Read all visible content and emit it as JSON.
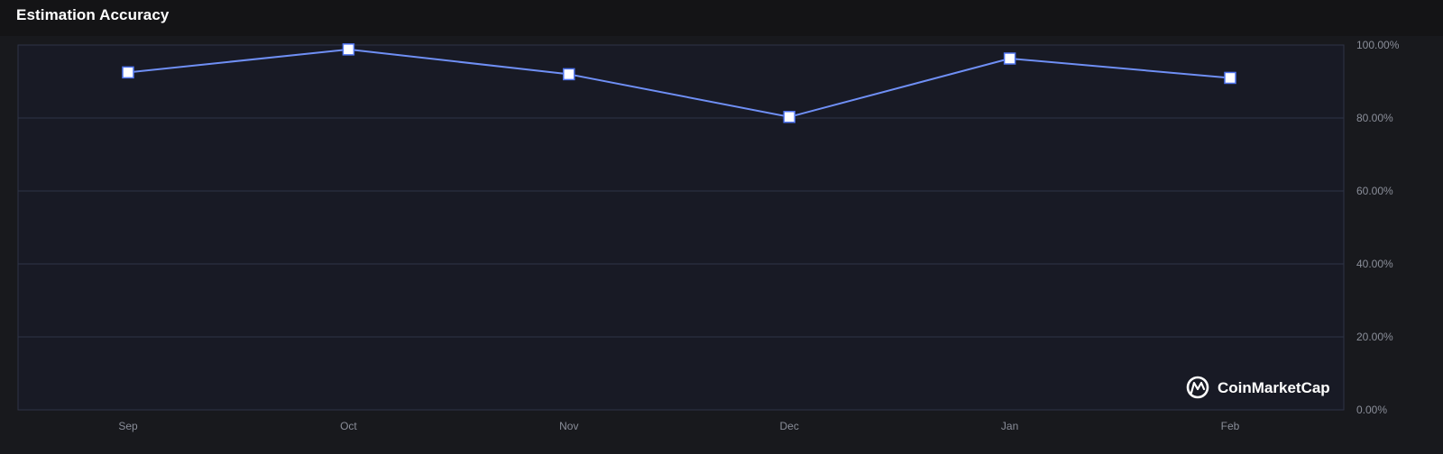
{
  "header": {
    "title": "Estimation Accuracy"
  },
  "watermark": {
    "text": "CoinMarketCap",
    "icon": "coinmarketcap-logo-icon"
  },
  "colors": {
    "line": "#6f8ff5",
    "marker_fill": "#ffffff",
    "marker_stroke": "#4f74f0",
    "grid": "#2e3447",
    "plot_background": "#181a25"
  },
  "chart_data": {
    "type": "line",
    "categories": [
      "Sep",
      "Oct",
      "Nov",
      "Dec",
      "Jan",
      "Feb"
    ],
    "series": [
      {
        "values": [
          92.5,
          98.8,
          92.0,
          80.3,
          96.3,
          91.0
        ]
      }
    ],
    "ylim": [
      0,
      100
    ],
    "y_ticks": [
      0,
      20,
      40,
      60,
      80,
      100
    ],
    "y_tick_labels": [
      "0.00%",
      "20.00%",
      "40.00%",
      "60.00%",
      "80.00%",
      "100.00%"
    ],
    "y_axis_side": "right",
    "grid": true,
    "legend": "none",
    "marker": "square"
  }
}
